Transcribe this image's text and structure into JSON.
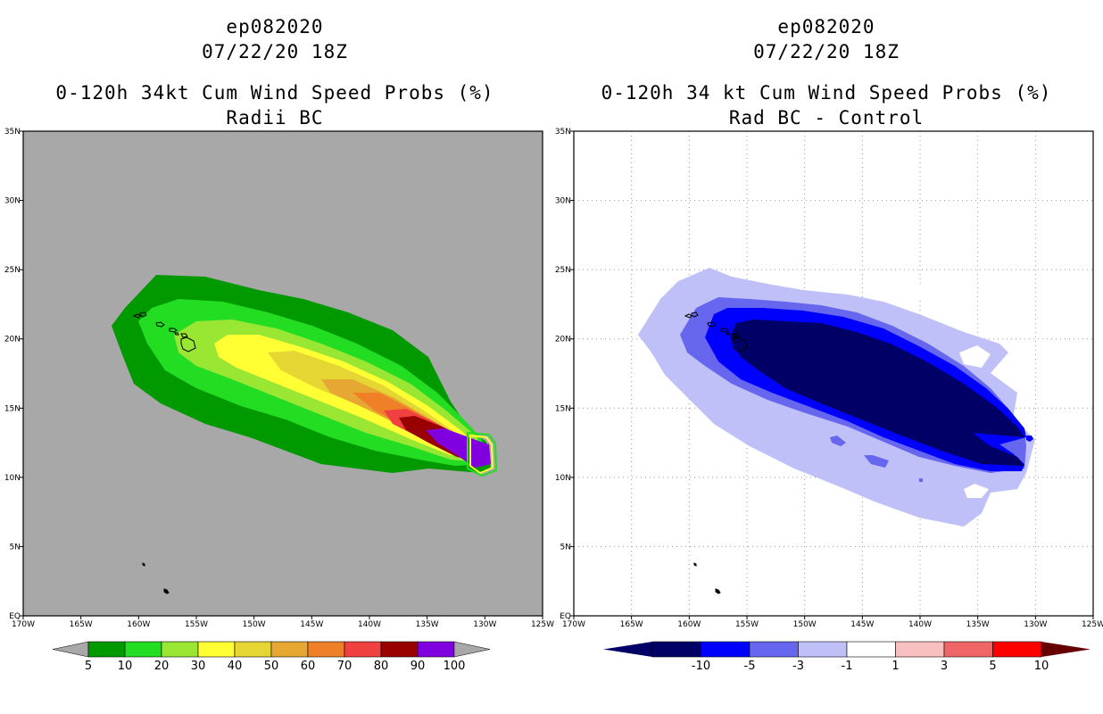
{
  "left_panel": {
    "storm_id": "ep082020",
    "datetime": "07/22/20 18Z",
    "product": "0-120h 34kt Cum Wind Speed Probs (%)",
    "subtitle": "Radii BC",
    "background_color": "#a8a8a8",
    "colorbar": {
      "labels": [
        "5",
        "10",
        "20",
        "30",
        "40",
        "50",
        "60",
        "70",
        "80",
        "90",
        "100"
      ],
      "colors": [
        "#009900",
        "#22dd22",
        "#99e633",
        "#ffff33",
        "#e6d633",
        "#e6a833",
        "#f08028",
        "#f04040",
        "#990000",
        "#8000e0"
      ],
      "end_color": "#a8a8a8"
    }
  },
  "right_panel": {
    "storm_id": "ep082020",
    "datetime": "07/22/20 18Z",
    "product": "0-120h 34 kt Cum Wind Speed Probs (%)",
    "subtitle": "Rad BC - Control",
    "background_color": "#ffffff",
    "colorbar": {
      "labels": [
        "-10",
        "-5",
        "-3",
        "-1",
        "1",
        "3",
        "5",
        "10"
      ],
      "colors": [
        "#000066",
        "#0000ff",
        "#6666ee",
        "#c0c0f8",
        "#ffffff",
        "#f8c0c0",
        "#f06666",
        "#ff0000"
      ],
      "left_end_color": "#000066",
      "right_end_color": "#660000"
    }
  },
  "map": {
    "lon_labels": [
      "170W",
      "165W",
      "160W",
      "155W",
      "150W",
      "145W",
      "140W",
      "135W",
      "130W",
      "125W"
    ],
    "lat_labels": [
      "EQ",
      "5N",
      "10N",
      "15N",
      "20N",
      "25N",
      "30N",
      "35N"
    ],
    "lon_range": [
      -170,
      -125
    ],
    "lat_range": [
      0,
      35
    ]
  }
}
